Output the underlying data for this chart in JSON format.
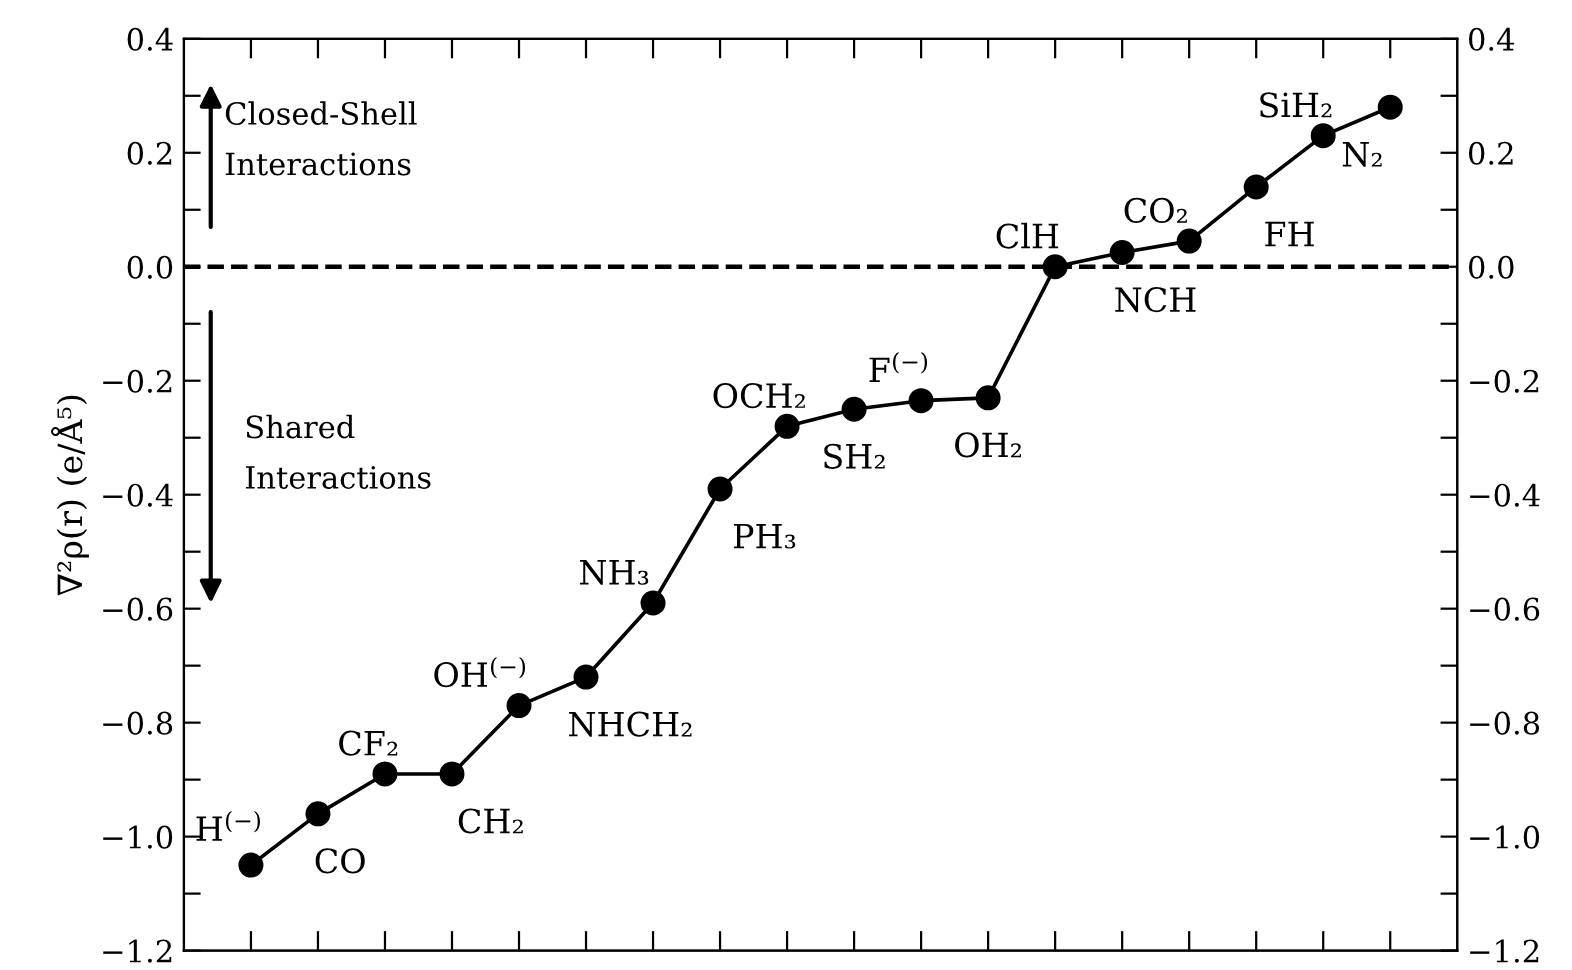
{
  "chart_data": {
    "type": "line",
    "ylabel": "∇²ρ(r) (e/Å⁵)",
    "categories": [
      null,
      null,
      null,
      null,
      null,
      null,
      null,
      null,
      null,
      null,
      null,
      null,
      null,
      null,
      null,
      null,
      null,
      null
    ],
    "series": [
      {
        "color": "#000000",
        "values": [
          -1.05,
          -0.96,
          -0.89,
          -0.89,
          -0.77,
          -0.72,
          -0.59,
          -0.39,
          -0.28,
          -0.25,
          -0.235,
          -0.23,
          0.0,
          0.025,
          0.045,
          0.14,
          0.23,
          0.28
        ]
      }
    ],
    "marker": "circle",
    "line_style": "solid",
    "grid": false,
    "legend": false,
    "ylim": [
      -1.2,
      0.4
    ],
    "yticks": [
      {
        "value": -1.2,
        "label": "−1.2"
      },
      {
        "value": -1.1,
        "label": null
      },
      {
        "value": -1.0,
        "label": "−1.0"
      },
      {
        "value": -0.9,
        "label": null
      },
      {
        "value": -0.8,
        "label": "−0.8"
      },
      {
        "value": -0.7,
        "label": null
      },
      {
        "value": -0.6,
        "label": "−0.6"
      },
      {
        "value": -0.5,
        "label": null
      },
      {
        "value": -0.4,
        "label": "−0.4"
      },
      {
        "value": -0.3,
        "label": null
      },
      {
        "value": -0.2,
        "label": "−0.2"
      },
      {
        "value": -0.1,
        "label": null
      },
      {
        "value": 0.0,
        "label": "0.0"
      },
      {
        "value": 0.1,
        "label": null
      },
      {
        "value": 0.2,
        "label": "0.2"
      },
      {
        "value": 0.3,
        "label": null
      },
      {
        "value": 0.4,
        "label": "0.4"
      }
    ],
    "y2lim": [
      -1.2,
      0.4
    ],
    "y2ticks": [
      {
        "value": -1.2,
        "label": "−1.2"
      },
      {
        "value": -1.1,
        "label": null
      },
      {
        "value": -1.0,
        "label": "−1.0"
      },
      {
        "value": -0.9,
        "label": null
      },
      {
        "value": -0.8,
        "label": "−0.8"
      },
      {
        "value": -0.7,
        "label": null
      },
      {
        "value": -0.6,
        "label": "−0.6"
      },
      {
        "value": -0.5,
        "label": null
      },
      {
        "value": -0.4,
        "label": "−0.4"
      },
      {
        "value": -0.3,
        "label": null
      },
      {
        "value": -0.2,
        "label": "−0.2"
      },
      {
        "value": -0.1,
        "label": null
      },
      {
        "value": 0.0,
        "label": "0.0"
      },
      {
        "value": 0.1,
        "label": null
      },
      {
        "value": 0.2,
        "label": "0.2"
      },
      {
        "value": 0.3,
        "label": null
      },
      {
        "value": 0.4,
        "label": "0.4"
      }
    ],
    "ref_lines": [
      {
        "axis": "y",
        "value": 0,
        "color": "#000000",
        "line_style": "dashed"
      }
    ],
    "annotations": [
      "Closed-Shell\nInteractions",
      "Shared\nInteractions",
      "H$^{(−)}$",
      "CO",
      "CF₂",
      "CH₂",
      "OH$^{(−)}$",
      "NHCH₂",
      "NH₃",
      "PH₃",
      "OCH₂",
      "SH₂",
      "F$^{(−)}$",
      "OH₂",
      "ClH",
      "NCH",
      "CO₂",
      "FH",
      "SiH₂",
      "N₂"
    ]
  }
}
